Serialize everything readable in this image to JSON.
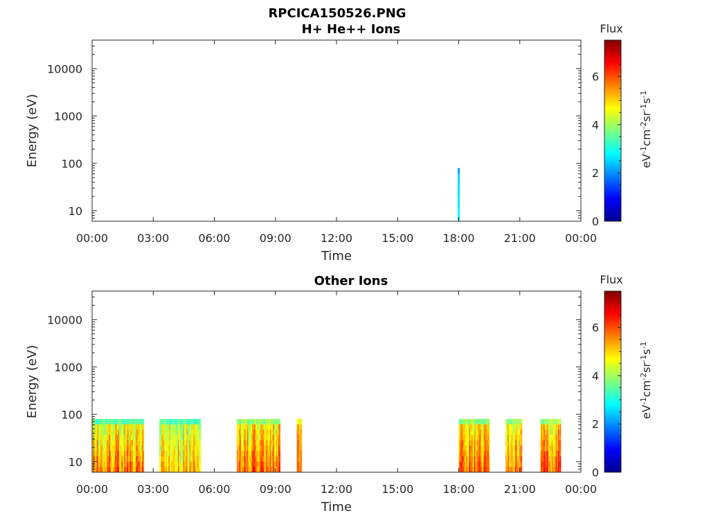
{
  "figure_title": "RPCICA150526.PNG",
  "chart_data": [
    {
      "type": "heatmap",
      "title": "H+ He++ Ions",
      "xlabel": "Time",
      "ylabel": "Energy (eV)",
      "x_ticks": [
        "00:00",
        "03:00",
        "06:00",
        "09:00",
        "12:00",
        "15:00",
        "18:00",
        "21:00",
        "00:00"
      ],
      "xlim_hours": [
        0,
        24
      ],
      "y_scale": "log",
      "y_ticks": [
        "10",
        "100",
        "1000",
        "10000"
      ],
      "ylim": [
        6,
        40000
      ],
      "energy_range_of_data": [
        6,
        80
      ],
      "colorbar": {
        "label": "Flux",
        "unit": "eV-1cm-2sr-1s-1",
        "range": [
          0,
          7.5
        ],
        "ticks": [
          "0",
          "2",
          "4",
          "6"
        ],
        "colormap": "jet"
      },
      "segments": [
        {
          "start_hour": 17.95,
          "end_hour": 18.05,
          "flux_min": 2.0,
          "flux_max": 3.0
        }
      ]
    },
    {
      "type": "heatmap",
      "title": "Other Ions",
      "xlabel": "Time",
      "ylabel": "Energy (eV)",
      "x_ticks": [
        "00:00",
        "03:00",
        "06:00",
        "09:00",
        "12:00",
        "15:00",
        "18:00",
        "21:00",
        "00:00"
      ],
      "xlim_hours": [
        0,
        24
      ],
      "y_scale": "log",
      "y_ticks": [
        "10",
        "100",
        "1000",
        "10000"
      ],
      "ylim": [
        6,
        40000
      ],
      "energy_range_of_data": [
        6,
        80
      ],
      "colorbar": {
        "label": "Flux",
        "unit": "eV-1cm-2sr-1s-1",
        "range": [
          0,
          7.5
        ],
        "ticks": [
          "0",
          "2",
          "4",
          "6"
        ],
        "colormap": "jet"
      },
      "segments": [
        {
          "start_hour": 0.0,
          "end_hour": 2.5,
          "flux_min": 3.0,
          "flux_max": 6.8
        },
        {
          "start_hour": 3.3,
          "end_hour": 5.3,
          "flux_min": 3.0,
          "flux_max": 6.3
        },
        {
          "start_hour": 7.1,
          "end_hour": 9.2,
          "flux_min": 3.5,
          "flux_max": 7.0
        },
        {
          "start_hour": 10.05,
          "end_hour": 10.3,
          "flux_min": 4.5,
          "flux_max": 6.5
        },
        {
          "start_hour": 18.0,
          "end_hour": 19.5,
          "flux_min": 3.5,
          "flux_max": 6.8
        },
        {
          "start_hour": 20.3,
          "end_hour": 21.1,
          "flux_min": 3.5,
          "flux_max": 6.8
        },
        {
          "start_hour": 22.0,
          "end_hour": 23.0,
          "flux_min": 3.5,
          "flux_max": 7.2
        }
      ]
    }
  ]
}
